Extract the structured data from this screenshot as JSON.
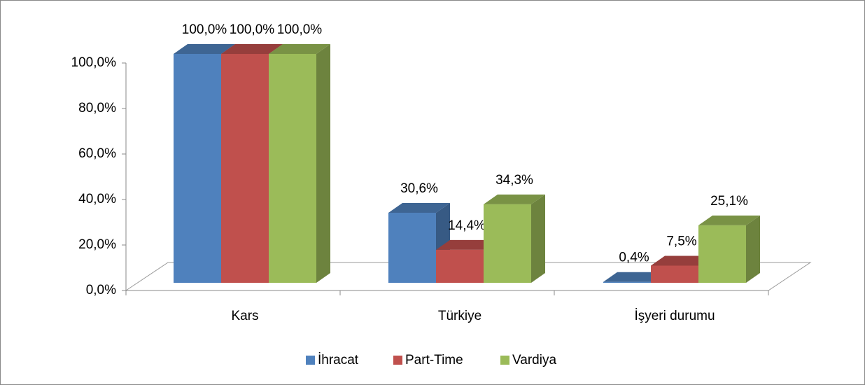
{
  "chart_data": {
    "type": "bar3d",
    "categories": [
      "Kars",
      "Türkiye",
      "İşyeri durumu"
    ],
    "series": [
      {
        "name": "İhracat",
        "color": "#4f81bd",
        "values": [
          100,
          30.6,
          0.4
        ],
        "value_labels": [
          "100,0%",
          "30,6%",
          "0,4%"
        ]
      },
      {
        "name": "Part-Time",
        "color": "#c0504d",
        "values": [
          100,
          14.4,
          7.5
        ],
        "value_labels": [
          "100,0%",
          "14,4%",
          "7,5%"
        ]
      },
      {
        "name": "Vardiya",
        "color": "#9bbb59",
        "values": [
          100,
          34.3,
          25.1
        ],
        "value_labels": [
          "100,0%",
          "34,3%",
          "25,1%"
        ]
      }
    ],
    "ylim": [
      0,
      100
    ],
    "yticks": [
      {
        "value": 0,
        "label": "0,0%"
      },
      {
        "value": 20,
        "label": "20,0%"
      },
      {
        "value": 40,
        "label": "40,0%"
      },
      {
        "value": 60,
        "label": "60,0%"
      },
      {
        "value": 80,
        "label": "80,0%"
      },
      {
        "value": 100,
        "label": "100,0%"
      }
    ],
    "legend": "bottom"
  }
}
